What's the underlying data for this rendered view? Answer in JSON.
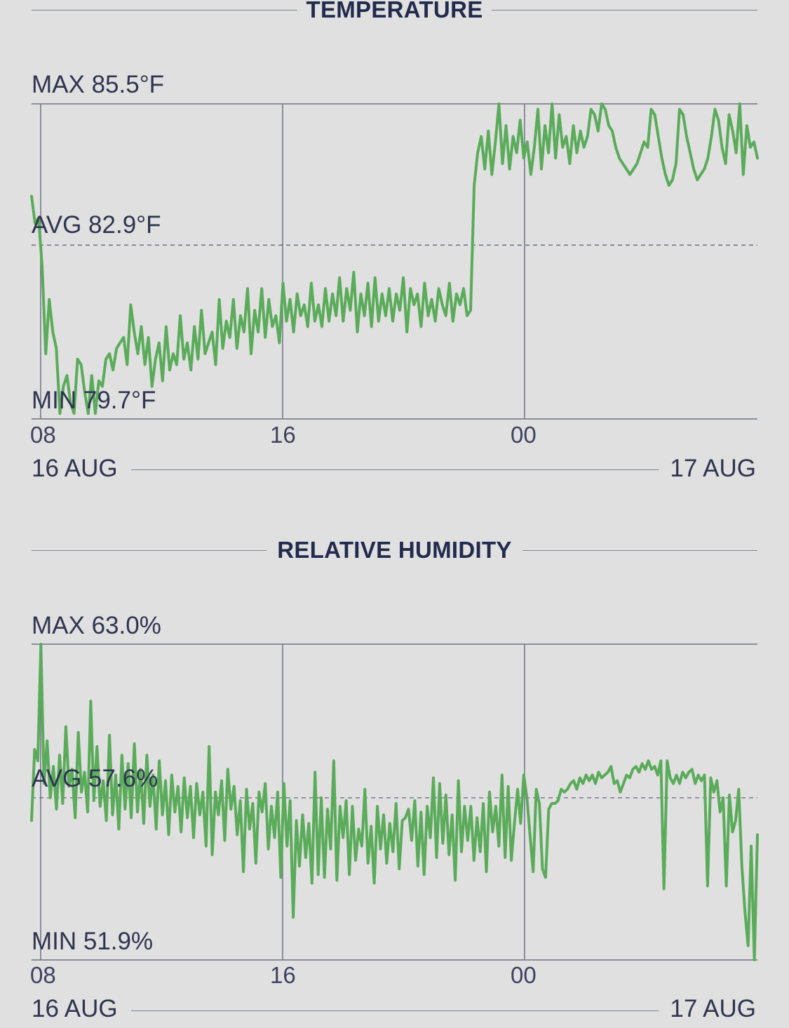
{
  "colors": {
    "series": "#5aab5a",
    "grid": "#6e7385",
    "title": "#222b4d",
    "background": "#e0e0e0"
  },
  "chart_data": [
    {
      "type": "line",
      "title": "TEMPERATURE",
      "stats": {
        "max": "MAX 85.5°F",
        "avg": "AVG 82.9°F",
        "min": "MIN 79.7°F"
      },
      "ylim": [
        79.7,
        85.5
      ],
      "avg": 82.9,
      "x_ticks": [
        "08",
        "16",
        "00"
      ],
      "x_tick_hours": [
        0,
        8,
        16
      ],
      "x_range_hours": [
        -0.3,
        23.7
      ],
      "date_start": "16 AUG",
      "date_end": "17 AUG",
      "grid": true,
      "series": [
        {
          "values": [
            83.8,
            83.3,
            83.4,
            82.5,
            80.9,
            81.9,
            81.3,
            81.0,
            79.8,
            80.3,
            80.5,
            80.0,
            79.8,
            80.8,
            80.7,
            80.2,
            79.8,
            80.5,
            79.8,
            80.4,
            80.3,
            80.8,
            80.9,
            80.6,
            81.0,
            81.1,
            81.2,
            80.7,
            81.8,
            81.3,
            80.9,
            81.4,
            80.7,
            81.2,
            80.3,
            80.8,
            81.1,
            80.4,
            81.4,
            80.6,
            80.9,
            80.7,
            81.6,
            80.8,
            81.1,
            80.6,
            81.4,
            80.8,
            81.7,
            80.9,
            81.1,
            81.3,
            80.7,
            81.9,
            81.0,
            81.5,
            81.2,
            81.9,
            81.0,
            81.6,
            81.3,
            82.1,
            80.9,
            81.7,
            81.3,
            82.1,
            81.2,
            81.9,
            81.4,
            81.6,
            81.1,
            82.2,
            81.5,
            81.9,
            81.3,
            82.0,
            81.6,
            81.8,
            81.4,
            82.2,
            81.5,
            81.8,
            81.4,
            82.1,
            81.5,
            82.0,
            81.6,
            82.3,
            81.5,
            82.1,
            81.7,
            82.4,
            81.3,
            82.0,
            81.6,
            82.2,
            81.4,
            82.3,
            81.5,
            82.0,
            81.6,
            82.1,
            81.5,
            82.0,
            81.7,
            82.3,
            81.3,
            82.1,
            81.8,
            82.0,
            81.4,
            82.2,
            81.6,
            81.9,
            81.5,
            82.1,
            81.8,
            81.6,
            82.2,
            81.5,
            82.0,
            81.8,
            82.1,
            81.6,
            81.7,
            84.0,
            84.6,
            84.9,
            84.3,
            85.0,
            84.2,
            84.8,
            85.5,
            84.4,
            85.1,
            84.3,
            84.9,
            84.6,
            85.2,
            84.5,
            84.8,
            84.2,
            84.7,
            85.4,
            84.3,
            85.1,
            84.6,
            85.5,
            84.5,
            85.3,
            84.7,
            84.9,
            84.4,
            85.1,
            84.6,
            85.0,
            84.7,
            84.9,
            85.4,
            85.3,
            85.0,
            85.5,
            85.4,
            85.1,
            85.0,
            84.7,
            84.5,
            84.4,
            84.3,
            84.2,
            84.3,
            84.4,
            84.6,
            84.8,
            84.7,
            85.4,
            85.3,
            84.9,
            84.5,
            84.2,
            84.0,
            84.1,
            84.4,
            85.4,
            85.3,
            84.9,
            84.6,
            84.3,
            84.1,
            84.2,
            84.3,
            84.5,
            84.9,
            85.4,
            85.2,
            84.7,
            84.4,
            85.3,
            85.0,
            84.6,
            85.5,
            84.2,
            85.1,
            84.7,
            84.8,
            84.5
          ]
        }
      ]
    },
    {
      "type": "line",
      "title": "RELATIVE HUMIDITY",
      "stats": {
        "max": "MAX 63.0%",
        "avg": "AVG 57.6%",
        "min": "MIN 51.9%"
      },
      "ylim": [
        51.9,
        63.0
      ],
      "avg": 57.6,
      "x_ticks": [
        "08",
        "16",
        "00"
      ],
      "x_tick_hours": [
        0,
        8,
        16
      ],
      "x_range_hours": [
        -0.3,
        23.7
      ],
      "date_start": "16 AUG",
      "date_end": "17 AUG",
      "grid": true,
      "series": [
        {
          "values": [
            56.8,
            59.3,
            58.9,
            63.0,
            58.1,
            59.6,
            57.6,
            58.7,
            57.2,
            59.1,
            57.4,
            60.1,
            58.0,
            58.6,
            56.9,
            59.9,
            57.8,
            58.5,
            57.1,
            61.0,
            57.5,
            59.4,
            57.3,
            58.2,
            56.8,
            59.8,
            57.0,
            58.4,
            56.5,
            59.1,
            57.2,
            58.8,
            56.9,
            59.5,
            57.1,
            58.6,
            56.7,
            59.1,
            57.3,
            58.4,
            56.5,
            58.9,
            57.0,
            58.2,
            56.3,
            58.4,
            57.1,
            58.0,
            56.4,
            58.3,
            56.9,
            58.0,
            56.2,
            58.1,
            57.0,
            57.8,
            55.9,
            59.4,
            55.6,
            57.8,
            57.0,
            58.2,
            56.1,
            58.6,
            57.2,
            58.0,
            56.3,
            57.5,
            55.0,
            57.9,
            56.5,
            57.4,
            55.3,
            57.8,
            57.1,
            58.1,
            55.8,
            57.3,
            56.2,
            57.8,
            54.8,
            58.1,
            55.9,
            57.5,
            53.4,
            56.8,
            55.2,
            57.0,
            55.5,
            56.7,
            54.6,
            58.5,
            54.9,
            57.6,
            54.8,
            57.2,
            55.8,
            58.9,
            54.7,
            57.3,
            56.2,
            57.5,
            54.9,
            57.3,
            55.4,
            56.5,
            55.9,
            57.9,
            55.3,
            56.6,
            54.6,
            57.3,
            55.8,
            57.0,
            55.3,
            56.7,
            55.7,
            57.4,
            55.1,
            56.8,
            56.9,
            57.2,
            56.1,
            57.5,
            55.2,
            57.1,
            54.9,
            57.3,
            56.2,
            58.3,
            55.5,
            58.1,
            56.0,
            57.7,
            55.6,
            57.0,
            54.7,
            58.2,
            55.7,
            57.3,
            56.1,
            57.3,
            55.4,
            56.9,
            55.7,
            57.4,
            55.0,
            57.8,
            56.4,
            57.3,
            55.9,
            58.4,
            55.5,
            58.0,
            55.4,
            56.7,
            57.9,
            56.7,
            58.4,
            57.6,
            56.3,
            55.0,
            57.9,
            57.4,
            55.1,
            54.8,
            57.2,
            57.4,
            57.4,
            57.5,
            57.9,
            57.8,
            57.9,
            58.1,
            58.2,
            57.9,
            58.3,
            58.1,
            58.4,
            58.2,
            58.4,
            58.1,
            58.5,
            58.3,
            58.4,
            58.5,
            58.7,
            58.1,
            58.2,
            57.8,
            58.1,
            58.4,
            58.3,
            58.6,
            58.7,
            58.5,
            58.8,
            58.6,
            58.9,
            58.6,
            58.7,
            58.4,
            58.9,
            54.4,
            58.9,
            58.3,
            58.1,
            58.4,
            58.1,
            58.5,
            58.3,
            58.5,
            58.6,
            58.1,
            58.4,
            58.2,
            58.4,
            54.5,
            58.3,
            57.8,
            58.2,
            57.1,
            57.6,
            54.5,
            57.7,
            56.4,
            56.8,
            57.9,
            55.2,
            53.6,
            52.4,
            55.9,
            51.9,
            56.3
          ]
        }
      ]
    }
  ]
}
